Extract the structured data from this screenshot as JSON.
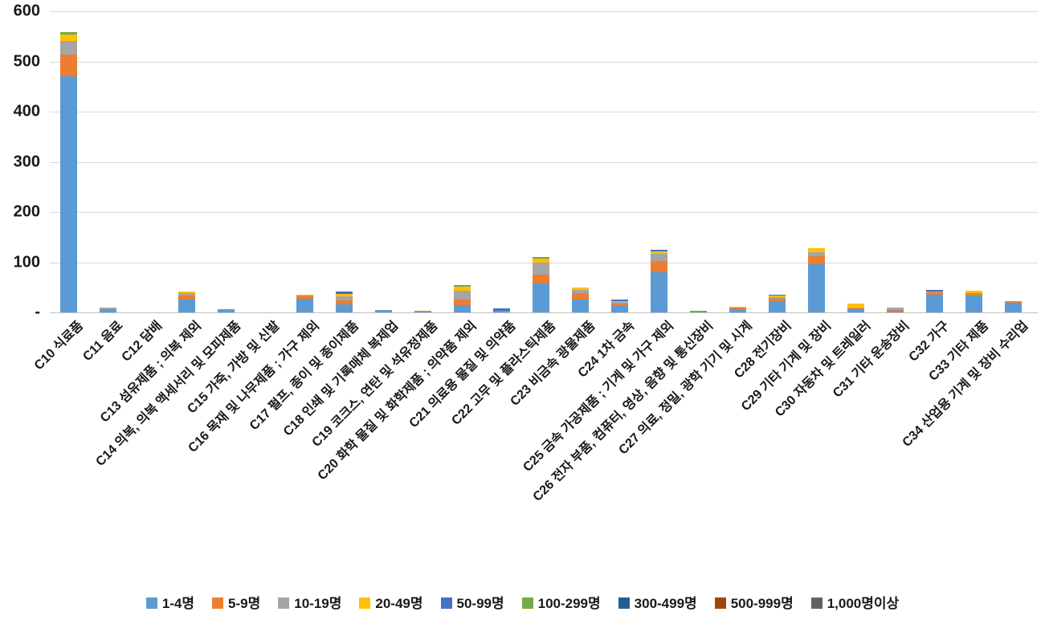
{
  "chart_data": {
    "type": "bar",
    "stacked": true,
    "title": "",
    "xlabel": "",
    "ylabel": "",
    "ylim": [
      0,
      600
    ],
    "grid": true,
    "legend_position": "bottom",
    "y_ticks": [
      {
        "value": 600,
        "label": "600"
      },
      {
        "value": 500,
        "label": "500"
      },
      {
        "value": 400,
        "label": "400"
      },
      {
        "value": 300,
        "label": "300"
      },
      {
        "value": 200,
        "label": "200"
      },
      {
        "value": 100,
        "label": "100"
      },
      {
        "value": 0,
        "label": "-"
      }
    ],
    "categories": [
      "C10 식료품",
      "C11 음료",
      "C12 담배",
      "C13 섬유제품 ; 의복 제외",
      "C14 의복, 의복 액세서리 및 모피제품",
      "C15 가죽, 가방 및 신발",
      "C16 목재 및 나무제품 ; 가구 제외",
      "C17 펄프, 종이 및 종이제품",
      "C18 인쇄 및 기록매체 복제업",
      "C19 코크스, 연탄 및 석유정제품",
      "C20 화학 물질 및 화학제품 ; 의약품 제외",
      "C21 의료용 물질 및 의약품",
      "C22 고무 및 플라스틱제품",
      "C23 비금속 광물제품",
      "C24 1차 금속",
      "C25 금속 가공제품 ; 기계 및 가구 제외",
      "C26 전자 부품, 컴퓨터, 영상, 음향 및 통신장비",
      "C27 의료, 정밀, 광학 기기 및 시계",
      "C28 전기장비",
      "C29 기타 기계 및 장비",
      "C30 자동차 및 트레일러",
      "C31 기타 운송장비",
      "C32 가구",
      "C33 기타 제품",
      "C34 산업용 기계 및 장비 수리업"
    ],
    "series": [
      {
        "name": "1-4명",
        "color": "#5B9BD5",
        "values": [
          470,
          6,
          0,
          25,
          7,
          0,
          28,
          16,
          5,
          1,
          15,
          4,
          57,
          26,
          13,
          80,
          0,
          6,
          22,
          96,
          6,
          3,
          35,
          33,
          19
        ]
      },
      {
        "name": "5-9명",
        "color": "#ED7D31",
        "values": [
          43,
          0,
          0,
          8,
          0,
          0,
          5,
          8,
          0,
          2,
          10,
          0,
          19,
          13,
          5,
          23,
          0,
          4,
          5,
          16,
          2,
          2,
          5,
          6,
          3
        ]
      },
      {
        "name": "10-19명",
        "color": "#A5A5A5",
        "values": [
          28,
          3,
          0,
          5,
          0,
          0,
          0,
          8,
          0,
          0,
          19,
          0,
          24,
          6,
          3,
          14,
          0,
          0,
          3,
          8,
          2,
          4,
          2,
          0,
          0
        ]
      },
      {
        "name": "20-49명",
        "color": "#FFC000",
        "values": [
          13,
          0,
          0,
          3,
          0,
          0,
          3,
          5,
          0,
          0,
          8,
          0,
          8,
          5,
          2,
          5,
          0,
          2,
          3,
          8,
          8,
          0,
          0,
          4,
          0
        ]
      },
      {
        "name": "50-99명",
        "color": "#4472C4",
        "values": [
          0,
          0,
          0,
          0,
          0,
          0,
          0,
          5,
          0,
          0,
          0,
          4,
          0,
          0,
          2,
          3,
          0,
          0,
          3,
          0,
          0,
          0,
          3,
          0,
          0
        ]
      },
      {
        "name": "100-299명",
        "color": "#70AD47",
        "values": [
          5,
          0,
          0,
          0,
          0,
          0,
          0,
          0,
          0,
          0,
          3,
          0,
          3,
          0,
          0,
          0,
          4,
          0,
          0,
          0,
          0,
          0,
          0,
          0,
          0
        ]
      },
      {
        "name": "300-499명",
        "color": "#255E91",
        "values": [
          0,
          0,
          0,
          0,
          0,
          0,
          0,
          0,
          0,
          0,
          0,
          0,
          0,
          0,
          0,
          0,
          0,
          0,
          0,
          0,
          0,
          0,
          0,
          0,
          0
        ]
      },
      {
        "name": "500-999명",
        "color": "#9E480E",
        "values": [
          0,
          0,
          0,
          0,
          0,
          0,
          0,
          0,
          0,
          0,
          0,
          0,
          0,
          0,
          0,
          0,
          0,
          0,
          0,
          0,
          0,
          0,
          0,
          0,
          0
        ]
      },
      {
        "name": "1,000명이상",
        "color": "#636363",
        "values": [
          0,
          0,
          0,
          0,
          0,
          0,
          0,
          0,
          0,
          0,
          0,
          0,
          0,
          0,
          0,
          0,
          0,
          0,
          0,
          0,
          0,
          0,
          0,
          0,
          0
        ]
      }
    ]
  }
}
